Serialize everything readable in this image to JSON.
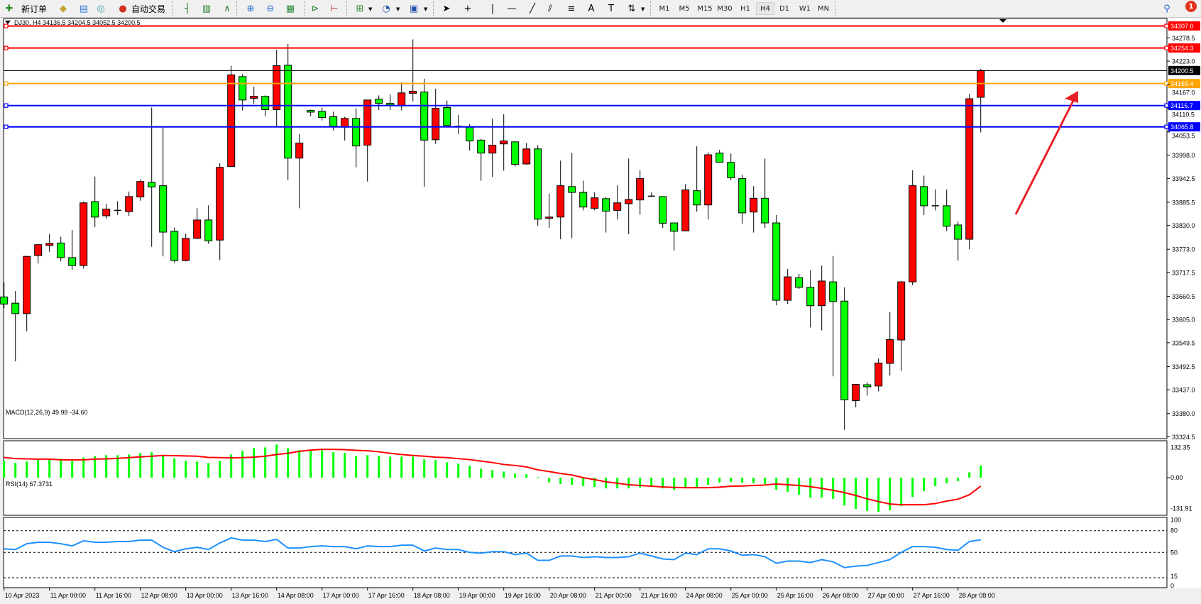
{
  "toolbar": {
    "new_order_label": "新订单",
    "auto_trading_label": "自动交易",
    "timeframes": [
      "M1",
      "M5",
      "M15",
      "M30",
      "H1",
      "H4",
      "D1",
      "W1",
      "MN"
    ],
    "active_timeframe": "H4",
    "notification_count": "1",
    "icons": [
      "new-order-icon",
      "market-watch-icon",
      "data-window-icon",
      "signals-icon",
      "auto-trading-icon",
      "bar-chart-icon",
      "candlestick-icon",
      "line-chart-icon",
      "zoom-in-icon",
      "zoom-out-icon",
      "tile-windows-icon",
      "chart-shift-icon",
      "autoscroll-icon",
      "indicators-icon",
      "periods-icon",
      "templates-icon",
      "cursor-icon",
      "crosshair-icon",
      "vertical-line-icon",
      "horizontal-line-icon",
      "trendline-icon",
      "equidistant-channel-icon",
      "fibonacci-icon",
      "text-icon",
      "text-label-icon",
      "arrows-icon",
      "search-icon",
      "notification-icon"
    ]
  },
  "chart": {
    "symbol_info": "DJ30, H4  34136.5 34204.5 34052.5 34200.5",
    "macd_label": "MACD(12,26,9) 49.98 -34.60",
    "rsi_label": "RSI(14) 67.3731"
  },
  "chart_data": {
    "type": "candlestick",
    "symbol": "DJ30",
    "timeframe": "H4",
    "colors": {
      "up": "#ff0000",
      "down": "#00ff00",
      "macd_hist": "#00ff00",
      "macd_signal": "#ff0000",
      "rsi": "#1e90ff"
    },
    "ohlc": [
      [
        33659,
        33694,
        33632,
        33642
      ],
      [
        33644,
        33673,
        33505,
        33619
      ],
      [
        33619,
        33756,
        33577,
        33756
      ],
      [
        33758,
        33785,
        33739,
        33784
      ],
      [
        33782,
        33810,
        33767,
        33787
      ],
      [
        33788,
        33803,
        33744,
        33753
      ],
      [
        33753,
        33819,
        33724,
        33734
      ],
      [
        33734,
        33887,
        33727,
        33884
      ],
      [
        33887,
        33947,
        33826,
        33850
      ],
      [
        33853,
        33882,
        33846,
        33869
      ],
      [
        33866,
        33888,
        33855,
        33866
      ],
      [
        33863,
        33911,
        33853,
        33899
      ],
      [
        33898,
        33940,
        33889,
        33935
      ],
      [
        33933,
        34112,
        33779,
        33922
      ],
      [
        33925,
        34064,
        33756,
        33814
      ],
      [
        33816,
        33825,
        33741,
        33746
      ],
      [
        33746,
        33810,
        33744,
        33799
      ],
      [
        33799,
        33871,
        33797,
        33843
      ],
      [
        33843,
        33878,
        33786,
        33793
      ],
      [
        33795,
        33979,
        33747,
        33969
      ],
      [
        33971,
        34212,
        33971,
        34190
      ],
      [
        34186,
        34192,
        34105,
        34130
      ],
      [
        34134,
        34162,
        34121,
        34139
      ],
      [
        34139,
        34141,
        34091,
        34107
      ],
      [
        34107,
        34250,
        34067,
        34212
      ],
      [
        34213,
        34264,
        33938,
        33991
      ],
      [
        33991,
        34049,
        33871,
        34027
      ],
      [
        34105,
        34107,
        34091,
        34101
      ],
      [
        34103,
        34112,
        34081,
        34088
      ],
      [
        34090,
        34102,
        34057,
        34067
      ],
      [
        34065,
        34090,
        34033,
        34086
      ],
      [
        34086,
        34110,
        33969,
        34020
      ],
      [
        34022,
        34130,
        33935,
        34130
      ],
      [
        34132,
        34141,
        34106,
        34122
      ],
      [
        34122,
        34143,
        34106,
        34118
      ],
      [
        34116,
        34172,
        34105,
        34147
      ],
      [
        34146,
        34275,
        34127,
        34151
      ],
      [
        34149,
        34181,
        33922,
        34034
      ],
      [
        34035,
        34157,
        34025,
        34110
      ],
      [
        34112,
        34129,
        34067,
        34069
      ],
      [
        34067,
        34094,
        34048,
        34067
      ],
      [
        34065,
        34072,
        34009,
        34032
      ],
      [
        34034,
        34037,
        33937,
        34003
      ],
      [
        34003,
        34085,
        33946,
        34022
      ],
      [
        34025,
        34096,
        33961,
        34032
      ],
      [
        34030,
        34030,
        33971,
        33976
      ],
      [
        33977,
        34027,
        33975,
        34013
      ],
      [
        34013,
        34022,
        33829,
        33845
      ],
      [
        33847,
        33906,
        33824,
        33850
      ],
      [
        33850,
        33985,
        33797,
        33925
      ],
      [
        33923,
        34003,
        33799,
        33909
      ],
      [
        33909,
        33937,
        33866,
        33874
      ],
      [
        33871,
        33909,
        33866,
        33896
      ],
      [
        33894,
        33897,
        33813,
        33864
      ],
      [
        33866,
        33926,
        33844,
        33884
      ],
      [
        33882,
        33990,
        33809,
        33892
      ],
      [
        33891,
        33962,
        33856,
        33942
      ],
      [
        33900,
        33909,
        33898,
        33900
      ],
      [
        33899,
        33899,
        33824,
        33835
      ],
      [
        33836,
        33836,
        33770,
        33816
      ],
      [
        33817,
        33929,
        33816,
        33915
      ],
      [
        33913,
        34019,
        33863,
        33879
      ],
      [
        33879,
        34005,
        33844,
        33999
      ],
      [
        34003,
        34011,
        33981,
        33981
      ],
      [
        33981,
        34002,
        33938,
        33944
      ],
      [
        33942,
        33951,
        33834,
        33860
      ],
      [
        33862,
        33924,
        33813,
        33895
      ],
      [
        33895,
        33990,
        33824,
        33836
      ],
      [
        33836,
        33855,
        33639,
        33651
      ],
      [
        33651,
        33726,
        33642,
        33707
      ],
      [
        33705,
        33714,
        33678,
        33682
      ],
      [
        33682,
        33723,
        33586,
        33638
      ],
      [
        33638,
        33734,
        33579,
        33697
      ],
      [
        33695,
        33757,
        33469,
        33648
      ],
      [
        33649,
        33682,
        33341,
        33413
      ],
      [
        33411,
        33450,
        33395,
        33450
      ],
      [
        33449,
        33455,
        33423,
        33444
      ],
      [
        33446,
        33512,
        33433,
        33501
      ],
      [
        33500,
        33623,
        33471,
        33557
      ],
      [
        33556,
        33697,
        33482,
        33695
      ],
      [
        33695,
        33962,
        33687,
        33925
      ],
      [
        33923,
        33949,
        33855,
        33877
      ],
      [
        33877,
        33916,
        33866,
        33877
      ],
      [
        33877,
        33916,
        33817,
        33828
      ],
      [
        33831,
        33839,
        33746,
        33797
      ],
      [
        33797,
        34145,
        33773,
        34133
      ],
      [
        34136.5,
        34204.5,
        34052.5,
        34200.5
      ]
    ],
    "price_axis": {
      "range": [
        33324.5,
        34307.0
      ],
      "ticks": [
        "34278.5",
        "34223.0",
        "34167.0",
        "34110.5",
        "34053.5",
        "33998.0",
        "33942.5",
        "33885.5",
        "33830.0",
        "33773.0",
        "33717.5",
        "33660.5",
        "33605.0",
        "33549.5",
        "33492.5",
        "33437.0",
        "33380.0",
        "33324.5"
      ]
    },
    "horizontal_lines": [
      {
        "price": 34307.0,
        "label": "34307.0",
        "color": "#ff0000"
      },
      {
        "price": 34254.3,
        "label": "34254.3",
        "color": "#ff0000"
      },
      {
        "price": 34169.4,
        "label": "34169.4",
        "color": "#ffa500"
      },
      {
        "price": 34116.7,
        "label": "34116.7",
        "color": "#0000ff"
      },
      {
        "price": 34065.8,
        "label": "34065.8",
        "color": "#0000ff"
      }
    ],
    "current_price": {
      "price": 34200.5,
      "label": "34200.5",
      "color": "#000000"
    },
    "time_axis": [
      {
        "bar": 0,
        "label": "10 Apr 2023"
      },
      {
        "bar": 4,
        "label": "11 Apr 00:00"
      },
      {
        "bar": 8,
        "label": "11 Apr 16:00"
      },
      {
        "bar": 12,
        "label": "12 Apr 08:00"
      },
      {
        "bar": 16,
        "label": "13 Apr 00:00"
      },
      {
        "bar": 20,
        "label": "13 Apr 16:00"
      },
      {
        "bar": 24,
        "label": "14 Apr 08:00"
      },
      {
        "bar": 28,
        "label": "17 Apr 00:00"
      },
      {
        "bar": 32,
        "label": "17 Apr 16:00"
      },
      {
        "bar": 36,
        "label": "18 Apr 08:00"
      },
      {
        "bar": 40,
        "label": "19 Apr 00:00"
      },
      {
        "bar": 44,
        "label": "19 Apr 16:00"
      },
      {
        "bar": 48,
        "label": "20 Apr 08:00"
      },
      {
        "bar": 52,
        "label": "21 Apr 00:00"
      },
      {
        "bar": 56,
        "label": "21 Apr 16:00"
      },
      {
        "bar": 60,
        "label": "24 Apr 08:00"
      },
      {
        "bar": 64,
        "label": "25 Apr 00:00"
      },
      {
        "bar": 68,
        "label": "25 Apr 16:00"
      },
      {
        "bar": 72,
        "label": "26 Apr 08:00"
      },
      {
        "bar": 76,
        "label": "27 Apr 00:00"
      },
      {
        "bar": 80,
        "label": "27 Apr 16:00"
      },
      {
        "bar": 84,
        "label": "28 Apr 08:00"
      }
    ],
    "macd": {
      "range": [
        -131.91,
        132.35
      ],
      "ticks": [
        "132.35",
        "0.00",
        "-131.91"
      ],
      "histogram": [
        69,
        61,
        66,
        73,
        74,
        78,
        69,
        83,
        89,
        92,
        92,
        95,
        101,
        104,
        89,
        79,
        69,
        66,
        60,
        69,
        95,
        110,
        121,
        124,
        136,
        121,
        113,
        109,
        113,
        104,
        101,
        89,
        92,
        89,
        86,
        86,
        86,
        75,
        72,
        63,
        57,
        49,
        37,
        31,
        25,
        17,
        14,
        2,
        -19,
        -26,
        -29,
        -35,
        -38,
        -44,
        -44,
        -44,
        -41,
        -38,
        -44,
        -50,
        -38,
        -38,
        -29,
        -20,
        -17,
        -20,
        -23,
        -26,
        -50,
        -58,
        -70,
        -82,
        -82,
        -87,
        -114,
        -128,
        -137,
        -140,
        -134,
        -117,
        -79,
        -55,
        -35,
        -23,
        -15,
        22,
        49.98
      ],
      "signal": [
        83,
        78,
        77,
        76,
        76,
        73,
        73,
        73,
        76,
        77,
        79,
        82,
        85,
        88,
        91,
        90,
        89,
        88,
        83,
        82,
        81,
        82,
        84,
        88,
        95,
        100,
        108,
        113,
        116,
        116,
        115,
        112,
        110,
        106,
        100,
        95,
        91,
        88,
        84,
        82,
        78,
        74,
        68,
        62,
        54,
        50,
        44,
        32,
        25,
        17,
        11,
        0,
        -8,
        -17,
        -23,
        -29,
        -32,
        -35,
        -38,
        -40,
        -41,
        -41,
        -41,
        -39,
        -35,
        -34,
        -32,
        -30,
        -26,
        -29,
        -32,
        -37,
        -44,
        -52,
        -61,
        -73,
        -87,
        -98,
        -108,
        -111,
        -111,
        -111,
        -106,
        -96,
        -88,
        -70,
        -34.6
      ]
    },
    "rsi": {
      "range": [
        0,
        100
      ],
      "ticks": [
        "100",
        "80",
        "50",
        "15",
        "0"
      ],
      "levels": [
        80,
        50,
        15
      ],
      "values": [
        55,
        54,
        62,
        64,
        64,
        62,
        59,
        66,
        64,
        64,
        65,
        65,
        67,
        67,
        57,
        51,
        55,
        57,
        54,
        63,
        70,
        67,
        67,
        65,
        68,
        56,
        56,
        58,
        59,
        58,
        58,
        55,
        59,
        58,
        58,
        60,
        60,
        52,
        56,
        54,
        54,
        50,
        49,
        51,
        51,
        47,
        49,
        39,
        39,
        45,
        45,
        43,
        44,
        43,
        43,
        44,
        49,
        45,
        41,
        40,
        49,
        47,
        55,
        55,
        52,
        46,
        47,
        44,
        35,
        38,
        38,
        36,
        40,
        37,
        29,
        31,
        32,
        36,
        40,
        50,
        58,
        58,
        57,
        54,
        53,
        65,
        67.37
      ]
    },
    "annotation": {
      "type": "arrow",
      "color": "#e8202a",
      "direction": "up-right"
    }
  }
}
